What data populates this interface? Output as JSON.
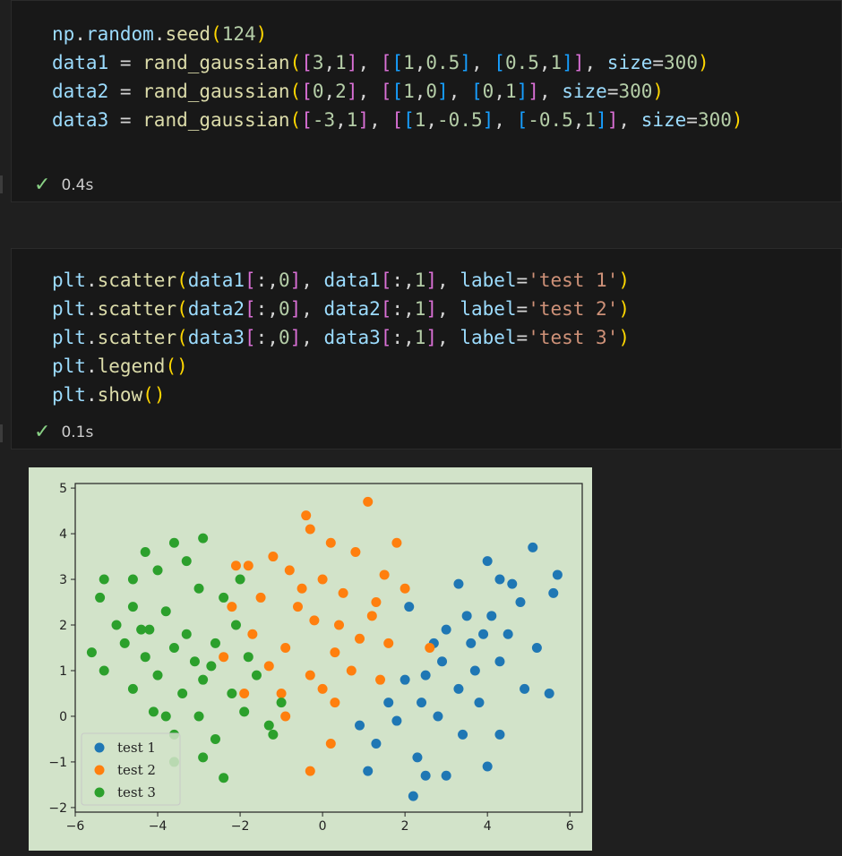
{
  "cells": [
    {
      "lines": [
        [
          [
            "np",
            "var"
          ],
          [
            ".",
            "op"
          ],
          [
            "random",
            "var"
          ],
          [
            ".",
            "op"
          ],
          [
            "seed",
            "fn"
          ],
          [
            "(",
            "br1"
          ],
          [
            "124",
            "num"
          ],
          [
            ")",
            "br1"
          ]
        ],
        [
          [
            "data1",
            "var"
          ],
          [
            " = ",
            "op"
          ],
          [
            "rand_gaussian",
            "fn"
          ],
          [
            "(",
            "br1"
          ],
          [
            "[",
            "br2"
          ],
          [
            "3",
            "num"
          ],
          [
            ",",
            "op"
          ],
          [
            "1",
            "num"
          ],
          [
            "]",
            "br2"
          ],
          [
            ", ",
            "op"
          ],
          [
            "[",
            "br2"
          ],
          [
            "[",
            "br3"
          ],
          [
            "1",
            "num"
          ],
          [
            ",",
            "op"
          ],
          [
            "0.5",
            "num"
          ],
          [
            "]",
            "br3"
          ],
          [
            ", ",
            "op"
          ],
          [
            "[",
            "br3"
          ],
          [
            "0.5",
            "num"
          ],
          [
            ",",
            "op"
          ],
          [
            "1",
            "num"
          ],
          [
            "]",
            "br3"
          ],
          [
            "]",
            "br2"
          ],
          [
            ", ",
            "op"
          ],
          [
            "size",
            "var"
          ],
          [
            "=",
            "op"
          ],
          [
            "300",
            "num"
          ],
          [
            ")",
            "br1"
          ]
        ],
        [
          [
            "data2",
            "var"
          ],
          [
            " = ",
            "op"
          ],
          [
            "rand_gaussian",
            "fn"
          ],
          [
            "(",
            "br1"
          ],
          [
            "[",
            "br2"
          ],
          [
            "0",
            "num"
          ],
          [
            ",",
            "op"
          ],
          [
            "2",
            "num"
          ],
          [
            "]",
            "br2"
          ],
          [
            ", ",
            "op"
          ],
          [
            "[",
            "br2"
          ],
          [
            "[",
            "br3"
          ],
          [
            "1",
            "num"
          ],
          [
            ",",
            "op"
          ],
          [
            "0",
            "num"
          ],
          [
            "]",
            "br3"
          ],
          [
            ", ",
            "op"
          ],
          [
            "[",
            "br3"
          ],
          [
            "0",
            "num"
          ],
          [
            ",",
            "op"
          ],
          [
            "1",
            "num"
          ],
          [
            "]",
            "br3"
          ],
          [
            "]",
            "br2"
          ],
          [
            ", ",
            "op"
          ],
          [
            "size",
            "var"
          ],
          [
            "=",
            "op"
          ],
          [
            "300",
            "num"
          ],
          [
            ")",
            "br1"
          ]
        ],
        [
          [
            "data3",
            "var"
          ],
          [
            " = ",
            "op"
          ],
          [
            "rand_gaussian",
            "fn"
          ],
          [
            "(",
            "br1"
          ],
          [
            "[",
            "br2"
          ],
          [
            "-3",
            "num"
          ],
          [
            ",",
            "op"
          ],
          [
            "1",
            "num"
          ],
          [
            "]",
            "br2"
          ],
          [
            ", ",
            "op"
          ],
          [
            "[",
            "br2"
          ],
          [
            "[",
            "br3"
          ],
          [
            "1",
            "num"
          ],
          [
            ",",
            "op"
          ],
          [
            "-0.5",
            "num"
          ],
          [
            "]",
            "br3"
          ],
          [
            ", ",
            "op"
          ],
          [
            "[",
            "br3"
          ],
          [
            "-0.5",
            "num"
          ],
          [
            ",",
            "op"
          ],
          [
            "1",
            "num"
          ],
          [
            "]",
            "br3"
          ],
          [
            "]",
            "br2"
          ],
          [
            ", ",
            "op"
          ],
          [
            "size",
            "var"
          ],
          [
            "=",
            "op"
          ],
          [
            "300",
            "num"
          ],
          [
            ")",
            "br1"
          ]
        ]
      ],
      "status_time": "0.4s"
    },
    {
      "lines": [
        [
          [
            "plt",
            "var"
          ],
          [
            ".",
            "op"
          ],
          [
            "scatter",
            "fn"
          ],
          [
            "(",
            "br1"
          ],
          [
            "data1",
            "var"
          ],
          [
            "[",
            "br2"
          ],
          [
            ":,",
            "op"
          ],
          [
            "0",
            "num"
          ],
          [
            "]",
            "br2"
          ],
          [
            ", ",
            "op"
          ],
          [
            "data1",
            "var"
          ],
          [
            "[",
            "br2"
          ],
          [
            ":,",
            "op"
          ],
          [
            "1",
            "num"
          ],
          [
            "]",
            "br2"
          ],
          [
            ", ",
            "op"
          ],
          [
            "label",
            "var"
          ],
          [
            "=",
            "op"
          ],
          [
            "'test 1'",
            "str"
          ],
          [
            ")",
            "br1"
          ]
        ],
        [
          [
            "plt",
            "var"
          ],
          [
            ".",
            "op"
          ],
          [
            "scatter",
            "fn"
          ],
          [
            "(",
            "br1"
          ],
          [
            "data2",
            "var"
          ],
          [
            "[",
            "br2"
          ],
          [
            ":,",
            "op"
          ],
          [
            "0",
            "num"
          ],
          [
            "]",
            "br2"
          ],
          [
            ", ",
            "op"
          ],
          [
            "data2",
            "var"
          ],
          [
            "[",
            "br2"
          ],
          [
            ":,",
            "op"
          ],
          [
            "1",
            "num"
          ],
          [
            "]",
            "br2"
          ],
          [
            ", ",
            "op"
          ],
          [
            "label",
            "var"
          ],
          [
            "=",
            "op"
          ],
          [
            "'test 2'",
            "str"
          ],
          [
            ")",
            "br1"
          ]
        ],
        [
          [
            "plt",
            "var"
          ],
          [
            ".",
            "op"
          ],
          [
            "scatter",
            "fn"
          ],
          [
            "(",
            "br1"
          ],
          [
            "data3",
            "var"
          ],
          [
            "[",
            "br2"
          ],
          [
            ":,",
            "op"
          ],
          [
            "0",
            "num"
          ],
          [
            "]",
            "br2"
          ],
          [
            ", ",
            "op"
          ],
          [
            "data3",
            "var"
          ],
          [
            "[",
            "br2"
          ],
          [
            ":,",
            "op"
          ],
          [
            "1",
            "num"
          ],
          [
            "]",
            "br2"
          ],
          [
            ", ",
            "op"
          ],
          [
            "label",
            "var"
          ],
          [
            "=",
            "op"
          ],
          [
            "'test 3'",
            "str"
          ],
          [
            ")",
            "br1"
          ]
        ],
        [
          [
            "plt",
            "var"
          ],
          [
            ".",
            "op"
          ],
          [
            "legend",
            "fn"
          ],
          [
            "(",
            "br1"
          ],
          [
            ")",
            "br1"
          ]
        ],
        [
          [
            "plt",
            "var"
          ],
          [
            ".",
            "op"
          ],
          [
            "show",
            "fn"
          ],
          [
            "(",
            "br1"
          ],
          [
            ")",
            "br1"
          ]
        ]
      ],
      "status_time": "0.1s"
    }
  ],
  "colors": {
    "series": [
      "#1f77b4",
      "#ff7f0e",
      "#2ca02c"
    ],
    "plot_bg": "#d2e3c9"
  },
  "chart_data": {
    "type": "scatter",
    "xlim": [
      -6,
      6.3
    ],
    "ylim": [
      -2.1,
      5.1
    ],
    "xticks": [
      -6,
      -4,
      -2,
      0,
      2,
      4,
      6
    ],
    "yticks": [
      -2,
      -1,
      0,
      1,
      2,
      3,
      4,
      5
    ],
    "legend": "lower-left",
    "series": [
      {
        "name": "test 1",
        "mean": [
          3,
          1
        ],
        "cov": [
          [
            1,
            0.5
          ],
          [
            0.5,
            1
          ]
        ],
        "size": 300,
        "points": [
          [
            5.1,
            3.7
          ],
          [
            5.7,
            3.1
          ],
          [
            4.0,
            3.4
          ],
          [
            4.3,
            3.0
          ],
          [
            3.3,
            2.9
          ],
          [
            5.6,
            2.7
          ],
          [
            4.8,
            2.5
          ],
          [
            3.5,
            2.2
          ],
          [
            2.1,
            2.4
          ],
          [
            4.1,
            2.2
          ],
          [
            3.0,
            1.9
          ],
          [
            4.5,
            1.8
          ],
          [
            2.7,
            1.6
          ],
          [
            5.2,
            1.5
          ],
          [
            4.3,
            1.2
          ],
          [
            3.7,
            1.0
          ],
          [
            2.5,
            0.9
          ],
          [
            3.3,
            0.6
          ],
          [
            2.0,
            0.8
          ],
          [
            4.9,
            0.6
          ],
          [
            5.5,
            0.5
          ],
          [
            3.8,
            0.3
          ],
          [
            1.6,
            0.3
          ],
          [
            2.8,
            0.0
          ],
          [
            0.9,
            -0.2
          ],
          [
            3.4,
            -0.4
          ],
          [
            1.3,
            -0.6
          ],
          [
            2.3,
            -0.9
          ],
          [
            3.0,
            -1.3
          ],
          [
            4.0,
            -1.1
          ],
          [
            2.5,
            -1.3
          ],
          [
            1.1,
            -1.2
          ],
          [
            2.2,
            -1.75
          ],
          [
            4.3,
            -0.4
          ],
          [
            2.9,
            1.2
          ],
          [
            3.6,
            1.6
          ],
          [
            4.6,
            2.9
          ],
          [
            2.4,
            0.3
          ],
          [
            1.8,
            -0.1
          ],
          [
            3.9,
            1.8
          ]
        ]
      },
      {
        "name": "test 2",
        "mean": [
          0,
          2
        ],
        "cov": [
          [
            1,
            0
          ],
          [
            0,
            1
          ]
        ],
        "size": 300,
        "points": [
          [
            1.1,
            4.7
          ],
          [
            -0.4,
            4.4
          ],
          [
            -0.3,
            4.1
          ],
          [
            0.2,
            3.8
          ],
          [
            -1.2,
            3.5
          ],
          [
            0.8,
            3.6
          ],
          [
            1.8,
            3.8
          ],
          [
            -1.8,
            3.3
          ],
          [
            -0.8,
            3.2
          ],
          [
            1.5,
            3.1
          ],
          [
            0.0,
            3.0
          ],
          [
            -1.5,
            2.6
          ],
          [
            0.5,
            2.7
          ],
          [
            2.0,
            2.8
          ],
          [
            -2.2,
            2.4
          ],
          [
            -0.6,
            2.4
          ],
          [
            1.2,
            2.2
          ],
          [
            -0.2,
            2.1
          ],
          [
            -1.7,
            1.8
          ],
          [
            0.9,
            1.7
          ],
          [
            1.6,
            1.6
          ],
          [
            -0.9,
            1.5
          ],
          [
            0.3,
            1.4
          ],
          [
            -2.4,
            1.3
          ],
          [
            -1.3,
            1.1
          ],
          [
            0.7,
            1.0
          ],
          [
            -0.3,
            0.9
          ],
          [
            1.4,
            0.8
          ],
          [
            -1.0,
            0.5
          ],
          [
            0.0,
            0.6
          ],
          [
            -1.9,
            0.5
          ],
          [
            0.3,
            0.3
          ],
          [
            -0.9,
            0.0
          ],
          [
            0.2,
            -0.6
          ],
          [
            -0.3,
            -1.2
          ],
          [
            2.6,
            1.5
          ],
          [
            -2.1,
            3.3
          ],
          [
            -0.5,
            2.8
          ],
          [
            0.4,
            2.0
          ],
          [
            1.3,
            2.5
          ]
        ]
      },
      {
        "name": "test 3",
        "mean": [
          -3,
          1
        ],
        "cov": [
          [
            1,
            -0.5
          ],
          [
            -0.5,
            1
          ]
        ],
        "size": 300,
        "points": [
          [
            -4.6,
            3.0
          ],
          [
            -4.3,
            3.6
          ],
          [
            -3.6,
            3.8
          ],
          [
            -2.9,
            3.9
          ],
          [
            -3.3,
            3.4
          ],
          [
            -5.3,
            3.0
          ],
          [
            -4.0,
            3.2
          ],
          [
            -2.0,
            3.0
          ],
          [
            -3.0,
            2.8
          ],
          [
            -5.4,
            2.6
          ],
          [
            -4.6,
            2.4
          ],
          [
            -3.8,
            2.3
          ],
          [
            -2.4,
            2.6
          ],
          [
            -5.0,
            2.0
          ],
          [
            -4.2,
            1.9
          ],
          [
            -3.3,
            1.8
          ],
          [
            -2.1,
            2.0
          ],
          [
            -4.8,
            1.6
          ],
          [
            -3.6,
            1.5
          ],
          [
            -2.6,
            1.6
          ],
          [
            -5.6,
            1.4
          ],
          [
            -4.3,
            1.3
          ],
          [
            -3.1,
            1.2
          ],
          [
            -1.8,
            1.3
          ],
          [
            -5.3,
            1.0
          ],
          [
            -4.0,
            0.9
          ],
          [
            -2.9,
            0.8
          ],
          [
            -1.6,
            0.9
          ],
          [
            -4.6,
            0.6
          ],
          [
            -3.4,
            0.5
          ],
          [
            -2.2,
            0.5
          ],
          [
            -4.1,
            0.1
          ],
          [
            -3.0,
            0.0
          ],
          [
            -1.9,
            0.1
          ],
          [
            -3.6,
            -0.4
          ],
          [
            -2.6,
            -0.5
          ],
          [
            -1.2,
            -0.4
          ],
          [
            -2.9,
            -0.9
          ],
          [
            -2.4,
            -1.35
          ],
          [
            -3.6,
            -1.0
          ],
          [
            -1.0,
            0.3
          ],
          [
            -1.3,
            -0.2
          ],
          [
            -3.8,
            0.0
          ],
          [
            -2.7,
            1.1
          ],
          [
            -4.4,
            1.9
          ]
        ]
      }
    ]
  }
}
